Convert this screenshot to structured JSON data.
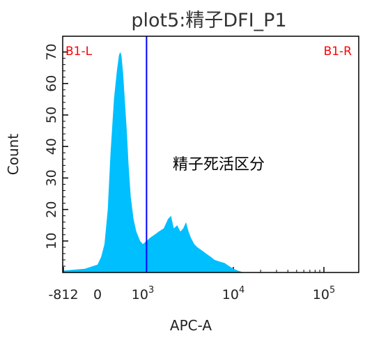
{
  "chart_data": {
    "type": "area",
    "title": "plot5:精子DFI_P1",
    "xlabel": "APC-A",
    "ylabel": "Count",
    "x_scale": "biexponential",
    "xlim": [
      -812,
      200000
    ],
    "ylim": [
      0,
      75
    ],
    "y_ticks": [
      10,
      20,
      30,
      40,
      50,
      60,
      70
    ],
    "x_ticks": [
      {
        "value": -812,
        "label": "-812",
        "exp": ""
      },
      {
        "value": 0,
        "label": "0",
        "exp": ""
      },
      {
        "value": 1000,
        "label": "10",
        "exp": "3"
      },
      {
        "value": 10000,
        "label": "10",
        "exp": "4"
      },
      {
        "value": 100000,
        "label": "10",
        "exp": "5"
      }
    ],
    "gate": {
      "position": 1100,
      "left_label": "B1-L",
      "right_label": "B1-R",
      "color": "#0000ff"
    },
    "annotation": "精子死活区分",
    "fill_color": "#00bfff",
    "series": [
      {
        "x": [
          -800,
          -300,
          0,
          80,
          150,
          220,
          280,
          330,
          370,
          400,
          420,
          440,
          470,
          500,
          540,
          580,
          630,
          700,
          780,
          900,
          1000,
          1100,
          1200,
          1350,
          1500,
          1700,
          1900,
          2050,
          2200,
          2400,
          2600,
          2800,
          3000,
          3200,
          3400,
          3700,
          4000,
          4500,
          5000,
          5600,
          6200,
          7000,
          8000,
          9000,
          10000,
          11500,
          13000
        ],
        "y": [
          0.6,
          1.2,
          2.5,
          5,
          9,
          20,
          38,
          55,
          64,
          69,
          70,
          69,
          63,
          55,
          45,
          34,
          24,
          17,
          13,
          10,
          9,
          10,
          11,
          12,
          13,
          14,
          17,
          18,
          14,
          15,
          13,
          14,
          16,
          13,
          11,
          9,
          8,
          7,
          6,
          5,
          4,
          3.5,
          3,
          2,
          1.2,
          0.5,
          0
        ]
      }
    ]
  }
}
